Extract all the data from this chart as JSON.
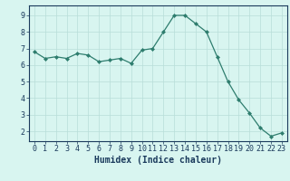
{
  "x": [
    0,
    1,
    2,
    3,
    4,
    5,
    6,
    7,
    8,
    9,
    10,
    11,
    12,
    13,
    14,
    15,
    16,
    17,
    18,
    19,
    20,
    21,
    22,
    23
  ],
  "y": [
    6.8,
    6.4,
    6.5,
    6.4,
    6.7,
    6.6,
    6.2,
    6.3,
    6.4,
    6.1,
    6.9,
    7.0,
    8.0,
    9.0,
    9.0,
    8.5,
    8.0,
    6.5,
    5.0,
    3.9,
    3.1,
    2.2,
    1.7,
    1.9
  ],
  "line_color": "#2e7d6e",
  "marker": "D",
  "marker_size": 2,
  "bg_color": "#d8f5f0",
  "grid_color": "#b8ddd8",
  "xlabel": "Humidex (Indice chaleur)",
  "xlabel_color": "#1a3a5c",
  "tick_color": "#1a3a5c",
  "ylim": [
    1.4,
    9.6
  ],
  "xlim": [
    -0.5,
    23.5
  ],
  "yticks": [
    2,
    3,
    4,
    5,
    6,
    7,
    8,
    9
  ],
  "xticks": [
    0,
    1,
    2,
    3,
    4,
    5,
    6,
    7,
    8,
    9,
    10,
    11,
    12,
    13,
    14,
    15,
    16,
    17,
    18,
    19,
    20,
    21,
    22,
    23
  ],
  "tick_fontsize": 6,
  "xlabel_fontsize": 7,
  "ylabel_fontsize": 7
}
